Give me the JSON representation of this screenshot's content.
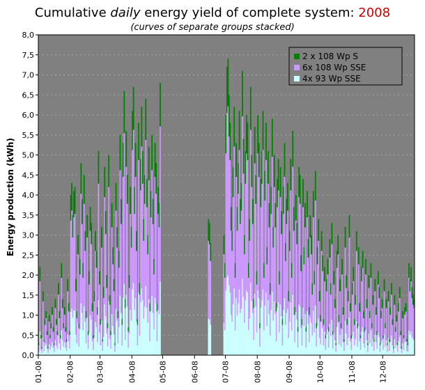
{
  "chart_data": {
    "type": "area",
    "title": {
      "prefix": "Cumulative ",
      "emph": "daily",
      "middle": " energy yield of complete system: ",
      "year": "2008"
    },
    "subtitle": "(curves of separate groups stacked)",
    "ylabel": "Energy production (kWh)",
    "xlabel": "",
    "ylim": [
      0,
      8
    ],
    "yticks": [
      "0,0",
      "0,5",
      "1,0",
      "1,5",
      "2,0",
      "2,5",
      "3,0",
      "3,5",
      "4,0",
      "4,5",
      "5,0",
      "5,5",
      "6,0",
      "6,5",
      "7,0",
      "7,5",
      "8,0"
    ],
    "xticks": [
      "01-08",
      "02-08",
      "03-08",
      "04-08",
      "05-08",
      "06-08",
      "07-08",
      "08-08",
      "09-08",
      "10-08",
      "11-08",
      "12-08"
    ],
    "legend_position": "top-right",
    "grid": true,
    "colors": {
      "plot_bg": "#808080",
      "s1": "#ccffff",
      "s2": "#cc99ff",
      "s3": "#008000"
    },
    "series": [
      {
        "name": "4x 93 Wp SSE"
      },
      {
        "name": "6x 108 Wp SSE"
      },
      {
        "name": "2 x 108 Wp S"
      }
    ],
    "daily_totals_2008": [
      0.3,
      2.2,
      0.5,
      0.2,
      1.6,
      0.4,
      0.9,
      1.1,
      0.6,
      0.2,
      1.0,
      0.5,
      0.8,
      1.2,
      0.7,
      0.3,
      1.4,
      0.9,
      0.6,
      1.8,
      1.1,
      0.5,
      2.3,
      1.4,
      0.8,
      1.2,
      0.7,
      0.4,
      1.9,
      1.3,
      0.6,
      4.0,
      4.3,
      3.5,
      4.1,
      4.2,
      1.9,
      1.1,
      3.0,
      0.8,
      2.4,
      4.8,
      3.9,
      2.3,
      4.5,
      3.1,
      1.1,
      3.5,
      0.6,
      2.1,
      3.7,
      3.3,
      1.3,
      0.5,
      1.6,
      3.1,
      2.6,
      1.2,
      5.1,
      2.1,
      0.9,
      3.2,
      0.4,
      1.7,
      4.7,
      3.6,
      2.0,
      0.8,
      5.0,
      1.5,
      0.6,
      3.8,
      2.7,
      1.9,
      0.3,
      4.3,
      3.2,
      1.1,
      2.6,
      5.5,
      3.9,
      0.9,
      5.3,
      6.6,
      1.4,
      5.6,
      4.5,
      0.7,
      2.0,
      4.2,
      3.2,
      6.1,
      6.7,
      4.2,
      5.3,
      3.1,
      0.9,
      5.8,
      1.8,
      4.9,
      6.2,
      5.1,
      3.4,
      4.5,
      6.4,
      4.4,
      3.0,
      5.2,
      1.3,
      4.1,
      5.5,
      3.9,
      2.4,
      5.3,
      4.8,
      1.3,
      4.2,
      3.8,
      6.8,
      0.0,
      0.0,
      0.0,
      0.0,
      0.0,
      0.0,
      0.0,
      0.0,
      0.0,
      0.0,
      0.0,
      0.0,
      0.0,
      0.0,
      0.0,
      0.0,
      0.0,
      0.0,
      0.0,
      0.0,
      0.0,
      0.0,
      0.0,
      0.0,
      0.0,
      0.0,
      0.0,
      0.0,
      0.0,
      0.0,
      0.0,
      0.0,
      0.0,
      0.0,
      0.0,
      0.0,
      0.0,
      0.0,
      0.0,
      0.0,
      0.0,
      0.0,
      0.0,
      0.0,
      0.0,
      0.0,
      3.4,
      3.3,
      2.8,
      0.0,
      0.0,
      0.0,
      0.0,
      0.0,
      0.0,
      0.0,
      0.0,
      0.0,
      0.0,
      0.0,
      0.0,
      3.0,
      2.3,
      6.0,
      7.2,
      7.4,
      6.5,
      5.8,
      3.7,
      3.1,
      4.7,
      6.2,
      2.3,
      5.3,
      3.7,
      4.8,
      6.1,
      3.9,
      4.3,
      7.1,
      5.4,
      3.0,
      5.1,
      6.0,
      5.8,
      2.3,
      3.4,
      6.7,
      5.0,
      3.9,
      1.4,
      5.7,
      4.5,
      2.1,
      6.0,
      5.3,
      0.8,
      4.4,
      5.1,
      6.1,
      2.3,
      4.6,
      5.8,
      2.7,
      5.1,
      3.8,
      1.8,
      4.2,
      5.9,
      3.2,
      5.0,
      3.8,
      1.3,
      4.4,
      4.9,
      2.1,
      4.7,
      3.6,
      0.9,
      4.2,
      5.3,
      2.8,
      3.9,
      4.3,
      1.6,
      3.1,
      4.9,
      2.3,
      5.6,
      3.7,
      1.2,
      4.0,
      3.3,
      0.7,
      4.7,
      4.5,
      2.5,
      0.9,
      4.4,
      2.7,
      3.8,
      0.7,
      4.1,
      2.9,
      1.2,
      3.5,
      3.0,
      1.8,
      4.1,
      2.1,
      4.6,
      0.8,
      2.7,
      3.4,
      1.6,
      1.0,
      3.1,
      2.5,
      0.9,
      2.2,
      0.5,
      1.9,
      2.4,
      0.7,
      2.9,
      1.8,
      3.3,
      0.6,
      2.1,
      1.4,
      0.3,
      2.6,
      3.0,
      1.0,
      1.9,
      0.8,
      2.4,
      1.2,
      0.4,
      3.2,
      2.0,
      0.9,
      1.6,
      3.5,
      1.3,
      0.5,
      1.8,
      2.2,
      0.9,
      1.5,
      3.1,
      0.8,
      2.7,
      1.3,
      0.5,
      2.2,
      2.6,
      1.1,
      0.7,
      2.4,
      1.4,
      0.3,
      2.0,
      1.1,
      2.3,
      0.8,
      1.5,
      0.4,
      1.9,
      1.2,
      0.6,
      2.1,
      1.7,
      0.3,
      1.1,
      1.4,
      0.5,
      1.9,
      0.8,
      1.4,
      0.3,
      1.6,
      0.4,
      1.2,
      1.8,
      0.9,
      0.2,
      1.5,
      0.7,
      1.0,
      0.3,
      1.3,
      1.7,
      0.6,
      0.2,
      1.1,
      0.5,
      1.2,
      1.3,
      0.4,
      0.3,
      2.3,
      1.9,
      2.2,
      1.7,
      1.5,
      1.4
    ]
  }
}
